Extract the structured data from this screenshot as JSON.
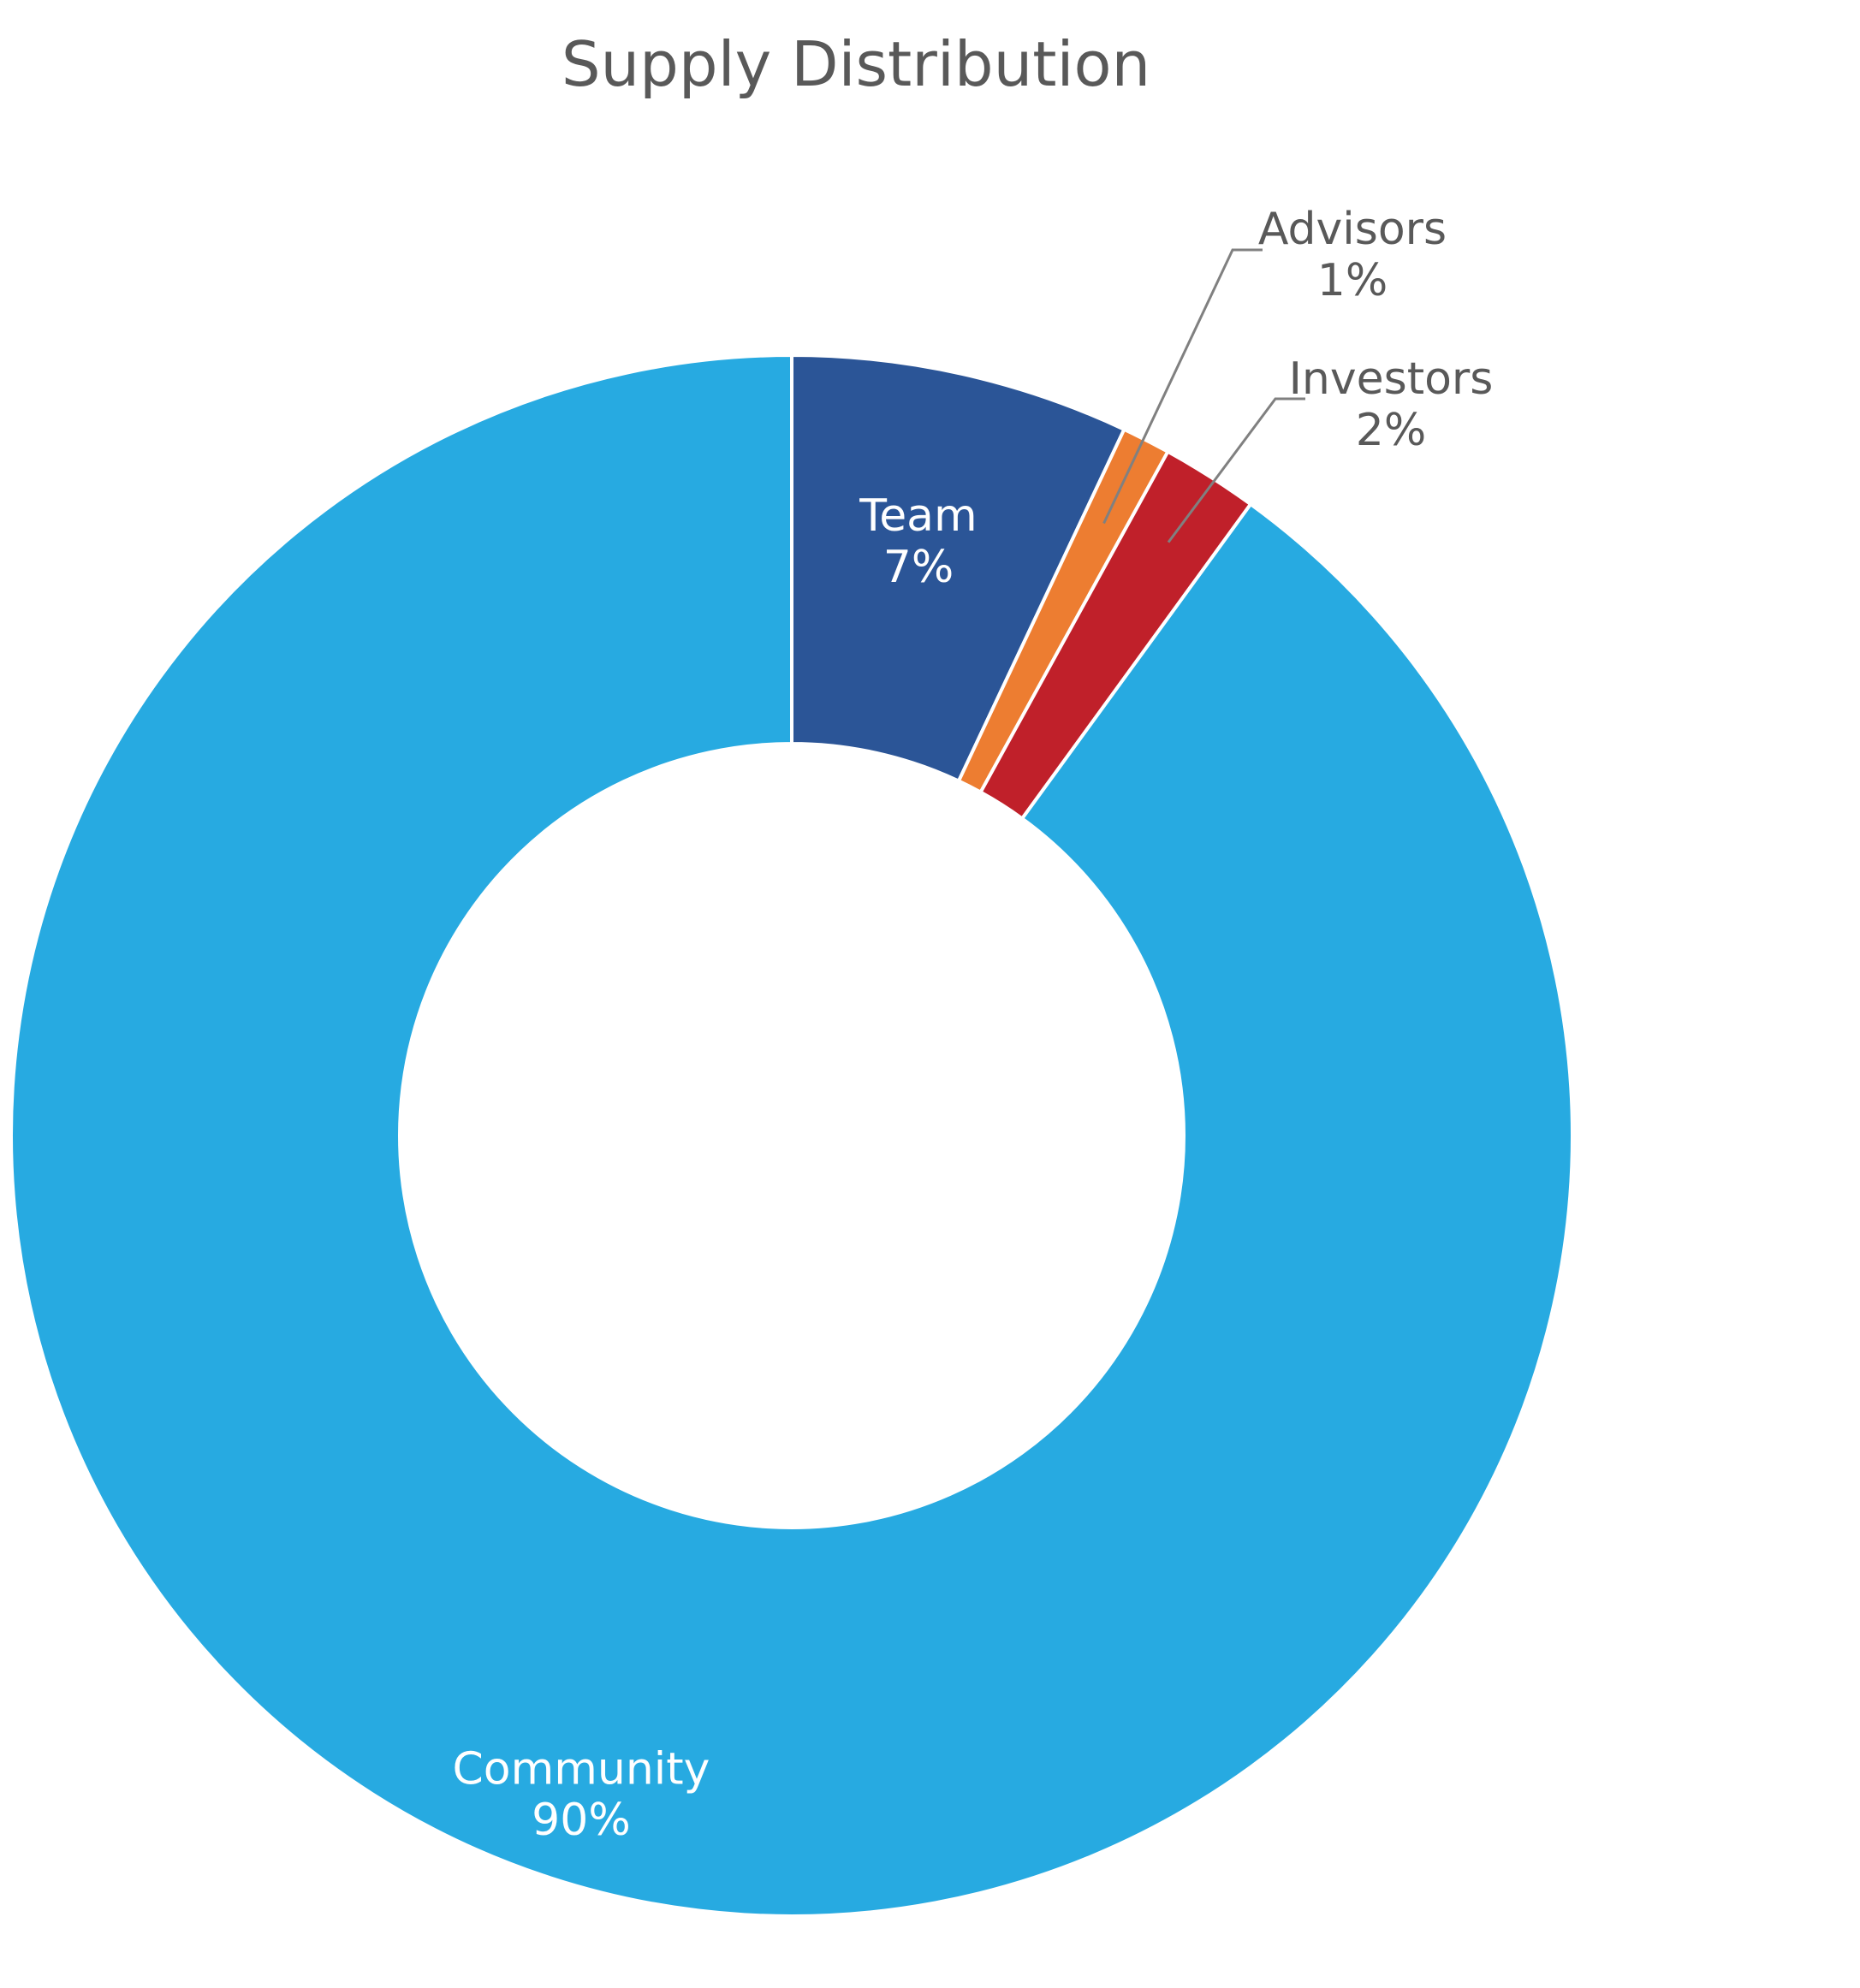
{
  "chart_data": {
    "type": "pie",
    "variant": "donut",
    "title": "Supply Distribution",
    "slices": [
      {
        "label": "Team",
        "value": 7,
        "display": "7%",
        "color": "#2B5597",
        "label_position": "inside"
      },
      {
        "label": "Advisors",
        "value": 1,
        "display": "1%",
        "color": "#ED7D31",
        "label_position": "outside"
      },
      {
        "label": "Investors",
        "value": 2,
        "display": "2%",
        "color": "#C0202A",
        "label_position": "outside"
      },
      {
        "label": "Community",
        "value": 90,
        "display": "90%",
        "color": "#27AAE1",
        "label_position": "inside"
      }
    ],
    "legend": "none"
  }
}
